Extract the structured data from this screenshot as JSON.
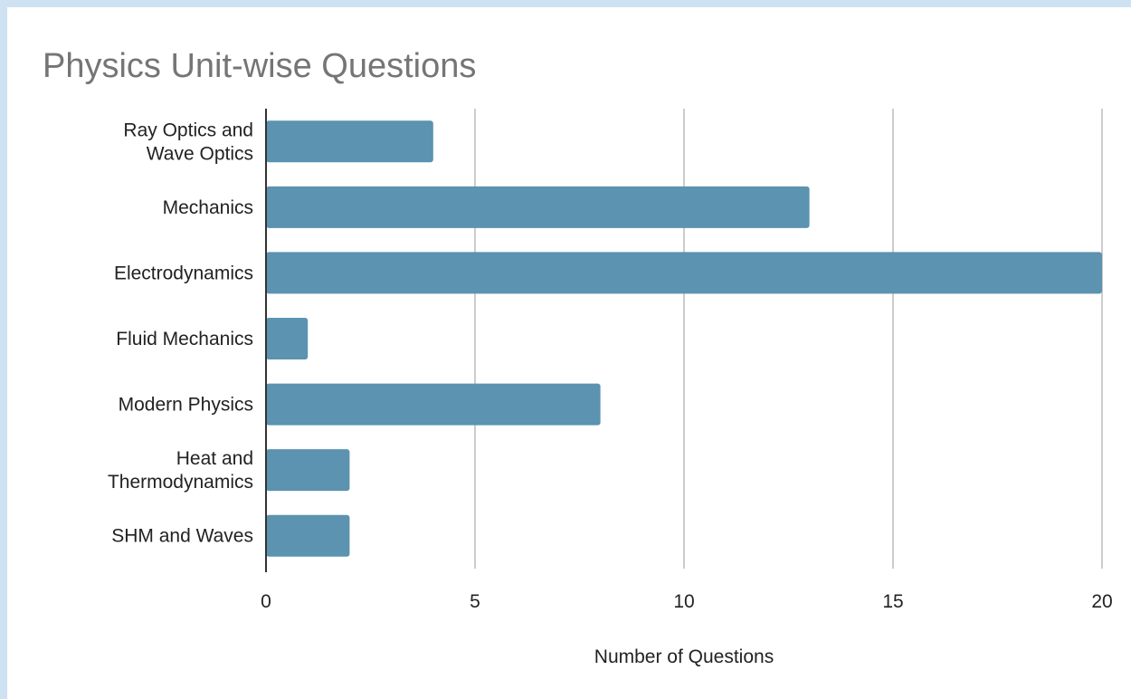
{
  "chart_data": {
    "type": "bar",
    "orientation": "horizontal",
    "title": "Physics Unit-wise Questions",
    "xlabel": "Number of Questions",
    "ylabel": "",
    "categories": [
      [
        "Ray Optics and",
        "Wave Optics"
      ],
      [
        "Mechanics"
      ],
      [
        "Electrodynamics"
      ],
      [
        "Fluid Mechanics"
      ],
      [
        "Modern Physics"
      ],
      [
        "Heat and",
        "Thermodynamics"
      ],
      [
        "SHM and Waves"
      ]
    ],
    "values": [
      4,
      13,
      20,
      1,
      8,
      2,
      2
    ],
    "xlim": [
      0,
      20
    ],
    "xticks": [
      "0",
      "5",
      "10",
      "15",
      "20"
    ],
    "grid": true,
    "legend": "none",
    "colors": {
      "bar": "#5b93b0",
      "title": "#757575",
      "grid": "#cccccc",
      "frame": "#cfe2f3"
    }
  }
}
